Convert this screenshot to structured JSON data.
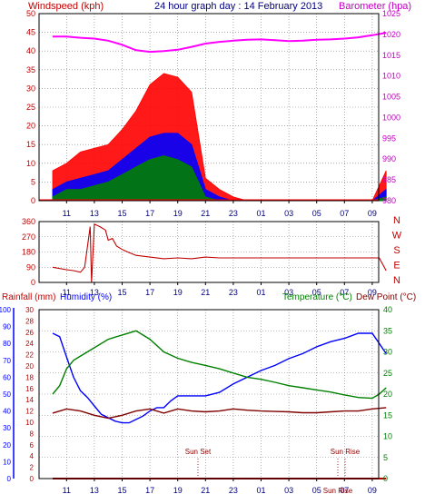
{
  "chart_data": [
    {
      "type": "line",
      "title": "24 hour graph day : 14 February 2013",
      "left_axis_label": "Windspeed (kph)",
      "right_axis_label": "Barometer (hpa)",
      "left_ylim": [
        0,
        50
      ],
      "left_ticks": [
        "0",
        "5",
        "10",
        "15",
        "20",
        "25",
        "30",
        "35",
        "40",
        "45",
        "50"
      ],
      "right_ylim": [
        980,
        1025
      ],
      "right_ticks": [
        "980",
        "985",
        "990",
        "995",
        "1000",
        "1005",
        "1010",
        "1015",
        "1020",
        "1025"
      ],
      "x_ticks": [
        "11",
        "13",
        "15",
        "17",
        "19",
        "21",
        "23",
        "01",
        "03",
        "05",
        "07",
        "09"
      ],
      "grid": true,
      "series": [
        {
          "axis": "right",
          "color": "#ff00ff",
          "x": [
            0,
            1,
            2,
            3,
            4,
            5,
            6,
            7,
            8,
            9,
            10,
            11,
            12,
            13,
            14,
            15,
            16,
            17,
            18,
            19,
            20,
            21,
            22,
            23,
            24
          ],
          "values": [
            1019.5,
            1019.5,
            1019.2,
            1019.0,
            1018.5,
            1017.5,
            1016.2,
            1015.8,
            1016.0,
            1016.3,
            1017.0,
            1017.8,
            1018.2,
            1018.5,
            1018.7,
            1018.8,
            1018.6,
            1018.4,
            1018.5,
            1018.7,
            1018.8,
            1019.0,
            1019.3,
            1019.8,
            1020.4
          ]
        },
        {
          "axis": "left",
          "color": "#ff0000",
          "x": [
            0,
            1,
            2,
            3,
            4,
            5,
            6,
            7,
            8,
            9,
            10,
            11,
            12,
            13,
            14,
            15,
            16,
            17,
            18,
            19,
            20,
            21,
            22,
            23,
            24
          ],
          "values": [
            8,
            10,
            13,
            14,
            15,
            19,
            24,
            31,
            34,
            33,
            29,
            6,
            3,
            1,
            0,
            0,
            0,
            0,
            0,
            0,
            0,
            0,
            0,
            0,
            8
          ]
        },
        {
          "axis": "left",
          "color": "#0000ff",
          "x": [
            0,
            1,
            2,
            3,
            4,
            5,
            6,
            7,
            8,
            9,
            10,
            11,
            12,
            13,
            14,
            15,
            16,
            17,
            18,
            19,
            20,
            21,
            22,
            23,
            24
          ],
          "values": [
            3,
            5,
            6,
            7,
            8,
            11,
            14,
            17,
            18,
            18,
            15,
            3,
            1,
            0,
            0,
            0,
            0,
            0,
            0,
            0,
            0,
            0,
            0,
            0,
            3
          ]
        },
        {
          "axis": "left",
          "color": "#008000",
          "x": [
            0,
            1,
            2,
            3,
            4,
            5,
            6,
            7,
            8,
            9,
            10,
            11,
            12,
            13,
            14,
            15,
            16,
            17,
            18,
            19,
            20,
            21,
            22,
            23,
            24
          ],
          "values": [
            1,
            3,
            3,
            4,
            5,
            7,
            9,
            11,
            12,
            11,
            9,
            1,
            0,
            0,
            0,
            0,
            0,
            0,
            0,
            0,
            0,
            0,
            0,
            0,
            1
          ]
        }
      ]
    },
    {
      "type": "line",
      "ylim": [
        0,
        360
      ],
      "left_ticks": [
        "0",
        "90",
        "180",
        "270",
        "360"
      ],
      "right_labels": [
        "N",
        "W",
        "S",
        "E",
        "N"
      ],
      "x_ticks": [
        "11",
        "13",
        "15",
        "17",
        "19",
        "21",
        "23",
        "01",
        "03",
        "05",
        "07",
        "09"
      ],
      "grid": true,
      "series": [
        {
          "color": "#c00000",
          "x": [
            0,
            1,
            1.5,
            2,
            2.3,
            2.7,
            2.8,
            3,
            3.4,
            3.8,
            4,
            4.3,
            4.6,
            5,
            5.4,
            6,
            7,
            8,
            9,
            10,
            11,
            12,
            14,
            16,
            18,
            20,
            22,
            23.5,
            24
          ],
          "values": [
            90,
            75,
            70,
            60,
            90,
            330,
            0,
            345,
            330,
            310,
            250,
            260,
            215,
            195,
            180,
            160,
            150,
            140,
            145,
            140,
            150,
            145,
            145,
            145,
            145,
            145,
            145,
            145,
            70
          ]
        }
      ]
    },
    {
      "type": "line",
      "left_axis_label": "Rainfall (mm)",
      "left_axis2_label": "Humidity (%)",
      "right_axis_label": "Temperature (°C)",
      "right_axis2_label": "Dew Point (°C)",
      "humidity_ylim": [
        0,
        100
      ],
      "humidity_ticks": [
        "0",
        "10",
        "20",
        "30",
        "40",
        "50",
        "60",
        "70",
        "80",
        "90",
        "100"
      ],
      "rain_ylim": [
        0,
        30
      ],
      "rain_ticks": [
        "0",
        "2",
        "4",
        "6",
        "8",
        "10",
        "12",
        "14",
        "16",
        "18",
        "20",
        "22",
        "24",
        "26",
        "28",
        "30"
      ],
      "temp_ylim": [
        0,
        40
      ],
      "temp_ticks": [
        "0",
        "5",
        "10",
        "15",
        "20",
        "25",
        "30",
        "35",
        "40"
      ],
      "x_ticks": [
        "11",
        "13",
        "15",
        "17",
        "19",
        "21",
        "23",
        "01",
        "03",
        "05",
        "07",
        "09"
      ],
      "annotations": [
        {
          "text": "Sun Set",
          "x": 17.3
        },
        {
          "text": "Sun Rise",
          "x": 22.7
        },
        {
          "text": "Sun Rise",
          "x": 22.2
        }
      ],
      "grid": true,
      "series": [
        {
          "axis": "humidity",
          "color": "#0000ff",
          "x": [
            0,
            0.5,
            1,
            1.5,
            2,
            2.5,
            3,
            3.5,
            4,
            4.5,
            5,
            5.5,
            6,
            6.5,
            7,
            7.5,
            8,
            8.5,
            9,
            10,
            11,
            12,
            13,
            14,
            15,
            16,
            17,
            18,
            19,
            20,
            21,
            22,
            23,
            23.5,
            24
          ],
          "values": [
            86,
            84,
            72,
            60,
            52,
            48,
            43,
            38,
            36,
            34,
            33,
            33,
            35,
            37,
            40,
            42,
            42,
            46,
            49,
            49,
            49,
            51,
            56,
            60,
            64,
            67,
            71,
            74,
            78,
            81,
            83,
            86,
            86,
            80,
            74
          ]
        },
        {
          "axis": "temp",
          "color": "#008000",
          "x": [
            0,
            0.5,
            1,
            1.5,
            2,
            3,
            4,
            5,
            6,
            7,
            8,
            9,
            10,
            11,
            12,
            13,
            14,
            15,
            16,
            17,
            18,
            19,
            20,
            21,
            22,
            23,
            23.5,
            24
          ],
          "values": [
            20,
            22,
            26,
            28,
            29,
            31,
            33,
            34,
            35,
            33,
            30,
            28.5,
            27.5,
            26.8,
            26,
            25,
            24,
            23.5,
            22.8,
            22,
            21.5,
            21,
            20.5,
            19.8,
            19.2,
            19,
            20,
            21.5
          ]
        },
        {
          "axis": "temp",
          "color": "#800000",
          "x": [
            0,
            1,
            2,
            3,
            4,
            5,
            6,
            7,
            8,
            9,
            10,
            11,
            12,
            13,
            14,
            15,
            16,
            17,
            18,
            19,
            20,
            21,
            22,
            23,
            24
          ],
          "values": [
            15.5,
            16.5,
            16,
            15,
            14.3,
            15,
            16,
            16.5,
            15.5,
            16.5,
            16,
            15.8,
            16,
            16.5,
            16.2,
            16,
            15.9,
            15.8,
            15.6,
            15.6,
            15.8,
            16,
            16,
            16.5,
            16.8
          ]
        },
        {
          "axis": "rain",
          "color": "#c00000",
          "x": [
            0,
            24
          ],
          "values": [
            0,
            0
          ]
        }
      ]
    }
  ]
}
